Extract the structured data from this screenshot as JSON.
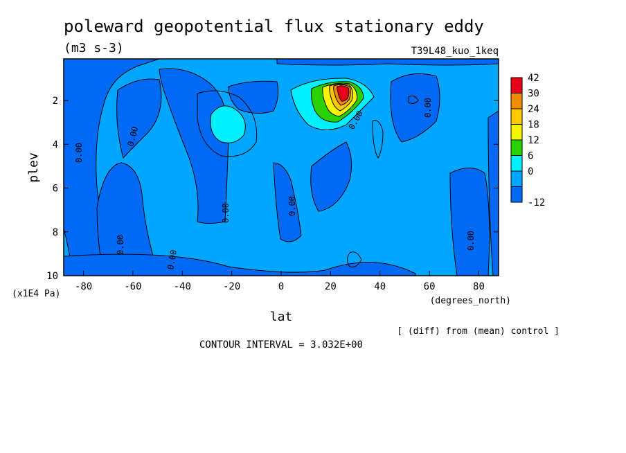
{
  "header": {
    "title": "poleward geopotential flux stationary eddy",
    "units": "(m3 s-3)",
    "run": "T39L48_kuo_1keq"
  },
  "chart_data": {
    "type": "heatmap",
    "title": "poleward geopotential flux stationary eddy",
    "subtitle": "(m3 s-3)",
    "xlabel": "lat",
    "ylabel": "plev",
    "x_unit": "(degrees_north)",
    "y_unit": "(x1E4 Pa)",
    "xlim": [
      -88,
      88
    ],
    "ylim": [
      10,
      0.1
    ],
    "x_ticks": [
      "-80",
      "-60",
      "-40",
      "-20",
      "0",
      "20",
      "40",
      "60",
      "80"
    ],
    "y_ticks": [
      "2",
      "4",
      "6",
      "8",
      "10"
    ],
    "colorbar": {
      "levels": [
        "42",
        "30",
        "24",
        "18",
        "12",
        "6",
        "0",
        "-12"
      ],
      "colors": [
        "#e8001a",
        "#f28c00",
        "#ffc800",
        "#f5f500",
        "#28d200",
        "#00f0ff",
        "#00a6ff",
        "#0069f5"
      ]
    },
    "contour_labels": [
      "0.00",
      "0.00",
      "0.00",
      "0.00",
      "0.00",
      "0.00",
      "0.00",
      "0.00",
      "0.00"
    ],
    "contour_interval": "CONTOUR INTERVAL = 3.032E+00",
    "note": "[ (diff) from (mean) control ]"
  }
}
